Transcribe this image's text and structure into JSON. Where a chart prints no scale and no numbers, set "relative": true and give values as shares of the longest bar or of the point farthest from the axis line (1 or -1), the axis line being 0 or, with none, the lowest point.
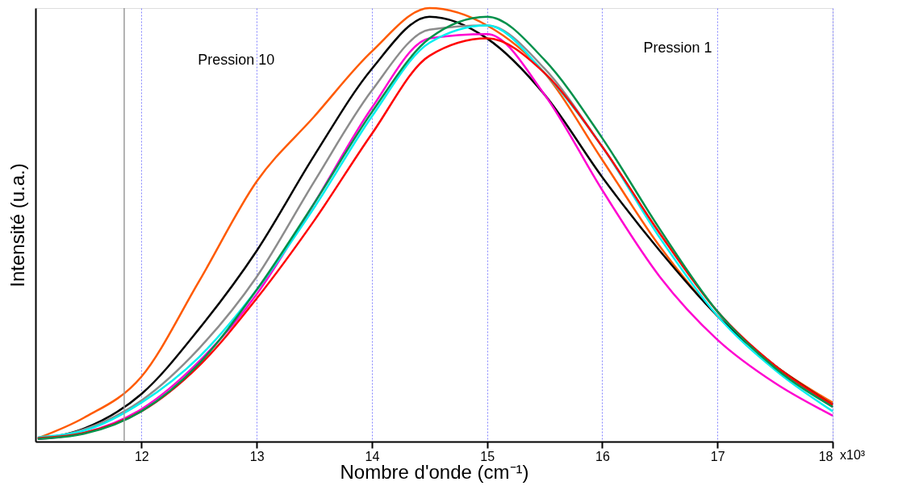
{
  "chart_data": {
    "type": "line",
    "relative": true,
    "xlabel": "Nombre d'onde (cm⁻¹)",
    "ylabel": "Intensité (u.a.)",
    "x": [
      11.1,
      11.5,
      12,
      12.5,
      13,
      13.5,
      14,
      14.5,
      15,
      15.5,
      16,
      16.5,
      17,
      17.5,
      18
    ],
    "xlim": [
      11.08,
      18
    ],
    "xticks": [
      12,
      13,
      14,
      15,
      16,
      17,
      18
    ],
    "grid": "x",
    "line_style": "solid",
    "marker": "none",
    "series": [
      {
        "color": "#ff5a00",
        "values": [
          0.008,
          0.055,
          0.15,
          0.37,
          0.6,
          0.75,
          0.9,
          1,
          0.96,
          0.85,
          0.65,
          0.45,
          0.29,
          0.175,
          0.09
        ]
      },
      {
        "color": "#000000",
        "values": [
          0.006,
          0.03,
          0.11,
          0.26,
          0.44,
          0.66,
          0.86,
          0.98,
          0.93,
          0.8,
          0.61,
          0.44,
          0.29,
          0.175,
          0.085
        ]
      },
      {
        "color": "#8c8c8c",
        "values": [
          0.006,
          0.028,
          0.095,
          0.215,
          0.38,
          0.6,
          0.81,
          0.95,
          0.96,
          0.86,
          0.68,
          0.48,
          0.3,
          0.175,
          0.08
        ]
      },
      {
        "color": "#ff00d0",
        "values": [
          0.006,
          0.02,
          0.075,
          0.185,
          0.34,
          0.55,
          0.77,
          0.93,
          0.94,
          0.8,
          0.58,
          0.38,
          0.235,
          0.135,
          0.06
        ]
      },
      {
        "color": "#00f0f0",
        "values": [
          0.01,
          0.025,
          0.09,
          0.195,
          0.35,
          0.54,
          0.75,
          0.92,
          0.96,
          0.85,
          0.68,
          0.47,
          0.29,
          0.165,
          0.07
        ]
      },
      {
        "color": "#ff0000",
        "values": [
          0.008,
          0.02,
          0.07,
          0.175,
          0.33,
          0.51,
          0.71,
          0.89,
          0.93,
          0.85,
          0.68,
          0.48,
          0.3,
          0.175,
          0.085
        ]
      },
      {
        "color": "#00904a",
        "values": [
          0.006,
          0.018,
          0.07,
          0.18,
          0.35,
          0.55,
          0.76,
          0.93,
          0.98,
          0.88,
          0.7,
          0.49,
          0.3,
          0.17,
          0.08
        ]
      }
    ],
    "ref_lines": [
      {
        "axis": "x",
        "value": 11.85,
        "color": "#999999"
      }
    ],
    "annotations": [
      "Pression 10",
      "Pression 1",
      "x10³"
    ]
  }
}
